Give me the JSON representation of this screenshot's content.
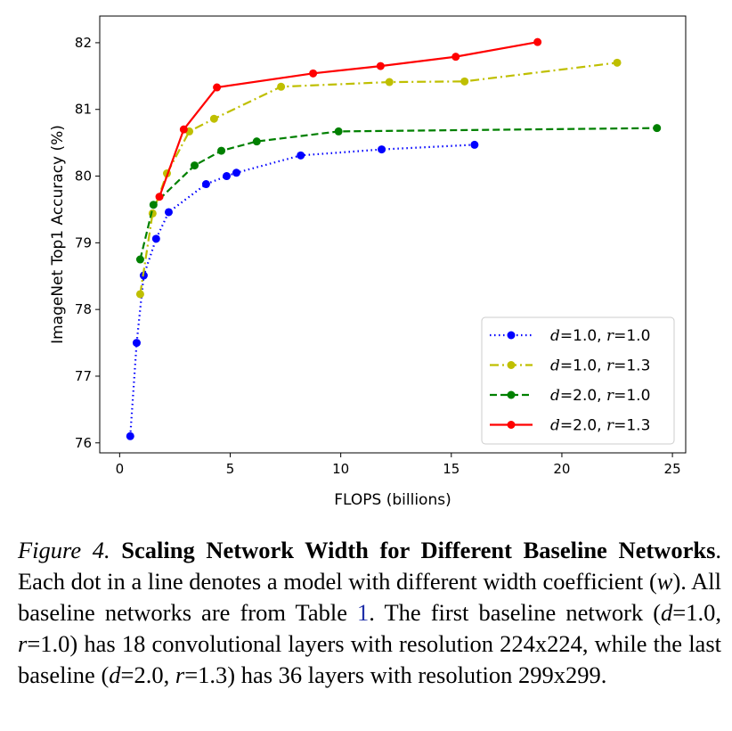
{
  "chart_data": {
    "type": "line",
    "xlabel": "FLOPS (billions)",
    "ylabel": "ImageNet Top1 Accuracy (%)",
    "xlim": [
      -0.9,
      25.6
    ],
    "ylim": [
      75.85,
      82.4
    ],
    "xticks": [
      0,
      5,
      10,
      15,
      20,
      25
    ],
    "yticks": [
      76,
      77,
      78,
      79,
      80,
      81,
      82
    ],
    "grid": false,
    "legend_position": "lower-right",
    "series": [
      {
        "name": "d=1.0, r=1.0",
        "name_var1": "d",
        "name_val1": "=1.0, ",
        "name_var2": "r",
        "name_val2": "=1.0",
        "color": "#0000ff",
        "style": "dotted",
        "x": [
          0.48,
          0.77,
          1.09,
          1.65,
          2.22,
          3.91,
          4.84,
          5.28,
          8.19,
          11.85,
          16.05
        ],
        "y": [
          76.1,
          77.5,
          78.51,
          79.06,
          79.46,
          79.88,
          80.0,
          80.05,
          80.31,
          80.4,
          80.47
        ]
      },
      {
        "name": "d=1.0, r=1.3",
        "name_var1": "d",
        "name_val1": "=1.0, ",
        "name_var2": "r",
        "name_val2": "=1.3",
        "color": "#bfbf00",
        "style": "dashdot",
        "x": [
          0.93,
          1.49,
          2.14,
          3.15,
          4.27,
          7.3,
          12.2,
          15.6,
          22.5
        ],
        "y": [
          78.23,
          79.44,
          80.04,
          80.67,
          80.86,
          81.34,
          81.41,
          81.42,
          81.7
        ]
      },
      {
        "name": "d=2.0, r=1.0",
        "name_var1": "d",
        "name_val1": "=2.0, ",
        "name_var2": "r",
        "name_val2": "=1.0",
        "color": "#008000",
        "style": "dashed",
        "x": [
          0.93,
          1.53,
          3.39,
          4.6,
          6.2,
          9.9,
          24.3
        ],
        "y": [
          78.75,
          79.57,
          80.16,
          80.38,
          80.52,
          80.67,
          80.72
        ]
      },
      {
        "name": "d=2.0, r=1.3",
        "name_var1": "d",
        "name_val1": "=2.0, ",
        "name_var2": "r",
        "name_val2": "=1.3",
        "color": "#ff0000",
        "style": "solid",
        "x": [
          1.8,
          2.9,
          4.4,
          8.75,
          11.8,
          15.2,
          18.9
        ],
        "y": [
          79.69,
          80.7,
          81.33,
          81.54,
          81.65,
          81.79,
          82.01
        ]
      }
    ]
  },
  "caption": {
    "figure_label": "Figure 4.",
    "title": "Scaling Network Width for Different Baseline Networks",
    "p1": ". Each dot in a line denotes a model with different width coefficient (",
    "w": "w",
    "p2": "). All baseline networks are from Table ",
    "table_ref": "1",
    "p3": ". The first baseline network (",
    "d1": "d",
    "p4": "=1.0, ",
    "r1": "r",
    "p5": "=1.0) has 18 convolutional layers with resolution 224x224, while the last baseline (",
    "d2": "d",
    "p6": "=2.0, ",
    "r2": "r",
    "p7": "=1.3) has 36 layers with resolution 299x299."
  }
}
